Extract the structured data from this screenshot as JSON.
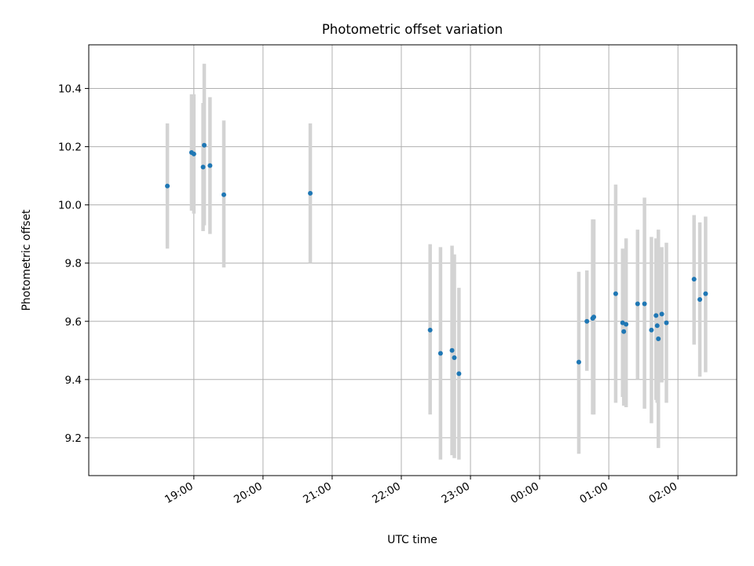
{
  "chart_data": {
    "type": "scatter",
    "title": "Photometric offset variation",
    "xlabel": "UTC time",
    "ylabel": "Photometric offset",
    "x_axis_kind": "time (hours relative to 18:00, wrapping past midnight)",
    "xlim_hours": [
      17.48,
      26.85
    ],
    "ylim": [
      9.07,
      10.55
    ],
    "xticks": [
      {
        "hours": 19,
        "label": "19:00"
      },
      {
        "hours": 20,
        "label": "20:00"
      },
      {
        "hours": 21,
        "label": "21:00"
      },
      {
        "hours": 22,
        "label": "22:00"
      },
      {
        "hours": 23,
        "label": "23:00"
      },
      {
        "hours": 24,
        "label": "00:00"
      },
      {
        "hours": 25,
        "label": "01:00"
      },
      {
        "hours": 26,
        "label": "02:00"
      }
    ],
    "yticks": [
      {
        "value": 9.2,
        "label": "9.2"
      },
      {
        "value": 9.4,
        "label": "9.4"
      },
      {
        "value": 9.6,
        "label": "9.6"
      },
      {
        "value": 9.8,
        "label": "9.8"
      },
      {
        "value": 10.0,
        "label": "10.0"
      },
      {
        "value": 10.2,
        "label": "10.2"
      },
      {
        "value": 10.4,
        "label": "10.4"
      }
    ],
    "grid": true,
    "colors": {
      "point": "#1f77b4",
      "errorbar": "#d3d3d3",
      "grid": "#b0b0b0"
    },
    "points": [
      {
        "time": "18:37",
        "y": 10.065,
        "err_low": 9.85,
        "err_high": 10.28
      },
      {
        "time": "18:58",
        "y": 10.18,
        "err_low": 9.98,
        "err_high": 10.38
      },
      {
        "time": "19:00",
        "y": 10.175,
        "err_low": 9.97,
        "err_high": 10.38
      },
      {
        "time": "19:08",
        "y": 10.13,
        "err_low": 9.91,
        "err_high": 10.35
      },
      {
        "time": "19:09",
        "y": 10.205,
        "err_low": 9.93,
        "err_high": 10.485
      },
      {
        "time": "19:14",
        "y": 10.135,
        "err_low": 9.9,
        "err_high": 10.37
      },
      {
        "time": "19:26",
        "y": 10.035,
        "err_low": 9.785,
        "err_high": 10.29
      },
      {
        "time": "20:41",
        "y": 10.04,
        "err_low": 9.8,
        "err_high": 10.28
      },
      {
        "time": "22:25",
        "y": 9.57,
        "err_low": 9.28,
        "err_high": 9.865
      },
      {
        "time": "22:34",
        "y": 9.49,
        "err_low": 9.125,
        "err_high": 9.855
      },
      {
        "time": "22:44",
        "y": 9.5,
        "err_low": 9.14,
        "err_high": 9.86
      },
      {
        "time": "22:46",
        "y": 9.475,
        "err_low": 9.13,
        "err_high": 9.83
      },
      {
        "time": "22:50",
        "y": 9.42,
        "err_low": 9.125,
        "err_high": 9.715
      },
      {
        "time": "00:34",
        "y": 9.46,
        "err_low": 9.145,
        "err_high": 9.77
      },
      {
        "time": "00:41",
        "y": 9.6,
        "err_low": 9.43,
        "err_high": 9.775
      },
      {
        "time": "00:46",
        "y": 9.61,
        "err_low": 9.28,
        "err_high": 9.95
      },
      {
        "time": "00:47",
        "y": 9.615,
        "err_low": 9.28,
        "err_high": 9.95
      },
      {
        "time": "01:06",
        "y": 9.695,
        "err_low": 9.32,
        "err_high": 10.07
      },
      {
        "time": "01:12",
        "y": 9.595,
        "err_low": 9.34,
        "err_high": 9.85
      },
      {
        "time": "01:13",
        "y": 9.565,
        "err_low": 9.31,
        "err_high": 9.83
      },
      {
        "time": "01:15",
        "y": 9.59,
        "err_low": 9.305,
        "err_high": 9.885
      },
      {
        "time": "01:25",
        "y": 9.66,
        "err_low": 9.4,
        "err_high": 9.915
      },
      {
        "time": "01:31",
        "y": 9.66,
        "err_low": 9.3,
        "err_high": 10.025
      },
      {
        "time": "01:37",
        "y": 9.57,
        "err_low": 9.25,
        "err_high": 9.89
      },
      {
        "time": "01:41",
        "y": 9.62,
        "err_low": 9.33,
        "err_high": 9.885
      },
      {
        "time": "01:42",
        "y": 9.585,
        "err_low": 9.32,
        "err_high": 9.88
      },
      {
        "time": "01:43",
        "y": 9.54,
        "err_low": 9.165,
        "err_high": 9.915
      },
      {
        "time": "01:46",
        "y": 9.625,
        "err_low": 9.39,
        "err_high": 9.855
      },
      {
        "time": "01:50",
        "y": 9.595,
        "err_low": 9.32,
        "err_high": 9.87
      },
      {
        "time": "02:14",
        "y": 9.745,
        "err_low": 9.52,
        "err_high": 9.965
      },
      {
        "time": "02:19",
        "y": 9.675,
        "err_low": 9.41,
        "err_high": 9.94
      },
      {
        "time": "02:24",
        "y": 9.695,
        "err_low": 9.425,
        "err_high": 9.96
      }
    ]
  }
}
